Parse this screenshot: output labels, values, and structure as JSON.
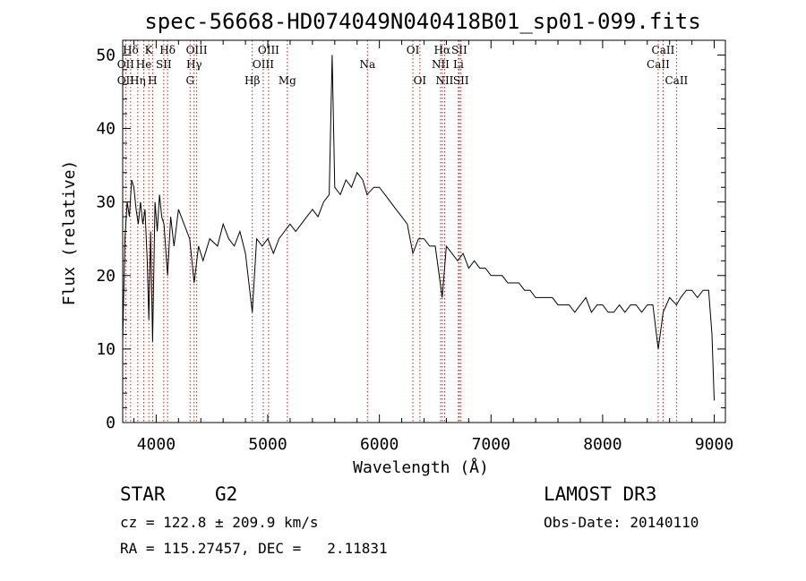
{
  "chart_data": {
    "type": "line",
    "title": "spec-56668-HD074049N040418B01_sp01-099.fits",
    "xlabel": "Wavelength (Å)",
    "ylabel": "Flux (relative)",
    "xlim": [
      3700,
      9100
    ],
    "ylim": [
      0,
      52
    ],
    "xticks": [
      4000,
      5000,
      6000,
      7000,
      8000,
      9000
    ],
    "yticks": [
      0,
      10,
      20,
      30,
      40,
      50
    ],
    "grid": false,
    "legend": "none",
    "line_color": "#000000",
    "marker_color": "#b22222",
    "spectrum": {
      "x": [
        3700,
        3720,
        3740,
        3760,
        3780,
        3800,
        3820,
        3840,
        3860,
        3880,
        3900,
        3920,
        3934,
        3950,
        3968,
        3990,
        4010,
        4030,
        4050,
        4070,
        4102,
        4130,
        4160,
        4200,
        4250,
        4300,
        4340,
        4380,
        4420,
        4480,
        4550,
        4600,
        4650,
        4700,
        4750,
        4800,
        4861,
        4900,
        4950,
        5000,
        5050,
        5100,
        5150,
        5200,
        5250,
        5300,
        5350,
        5400,
        5450,
        5500,
        5550,
        5577,
        5600,
        5650,
        5700,
        5750,
        5800,
        5850,
        5890,
        5950,
        6000,
        6050,
        6100,
        6150,
        6200,
        6250,
        6300,
        6350,
        6400,
        6450,
        6500,
        6563,
        6600,
        6650,
        6700,
        6750,
        6800,
        6850,
        6900,
        6950,
        7000,
        7050,
        7100,
        7150,
        7200,
        7250,
        7300,
        7350,
        7400,
        7450,
        7500,
        7550,
        7600,
        7650,
        7700,
        7750,
        7800,
        7850,
        7900,
        7950,
        8000,
        8050,
        8100,
        8150,
        8200,
        8250,
        8300,
        8350,
        8400,
        8450,
        8498,
        8542,
        8600,
        8662,
        8700,
        8750,
        8800,
        8850,
        8900,
        8950,
        8980,
        9000
      ],
      "y": [
        11,
        25,
        30,
        28,
        33,
        32,
        29,
        27,
        30,
        27,
        29,
        22,
        14,
        26,
        11,
        30,
        26,
        31,
        28,
        27,
        20,
        28,
        24,
        29,
        27,
        25,
        19,
        24,
        22,
        25,
        24,
        27,
        25,
        24,
        26,
        23,
        15,
        25,
        24,
        25,
        23,
        25,
        26,
        27,
        26,
        27,
        28,
        29,
        28,
        30,
        31,
        50,
        32,
        31,
        33,
        32,
        34,
        33,
        31,
        32,
        32,
        31,
        30,
        29,
        28,
        27,
        23,
        25,
        25,
        24,
        24,
        17,
        24,
        23,
        22,
        23,
        21,
        22,
        21,
        21,
        20,
        20,
        20,
        19,
        19,
        19,
        18,
        18,
        17,
        17,
        17,
        17,
        16,
        16,
        16,
        15,
        16,
        17,
        15,
        16,
        16,
        15,
        15,
        16,
        15,
        16,
        16,
        15,
        16,
        16,
        10,
        15,
        17,
        16,
        17,
        18,
        18,
        17,
        18,
        18,
        12,
        3
      ]
    },
    "line_markers": [
      {
        "label": "Hδ",
        "x": 3771,
        "row": 0
      },
      {
        "label": "OII",
        "x": 3727,
        "row": 1
      },
      {
        "label": "OII",
        "x": 3727,
        "row": 2
      },
      {
        "label": "Hη",
        "x": 3835,
        "row": 2
      },
      {
        "label": "He",
        "x": 3889,
        "row": 1
      },
      {
        "label": "K",
        "x": 3934,
        "row": 0
      },
      {
        "label": "SII",
        "x": 4068,
        "row": 1
      },
      {
        "label": "H",
        "x": 3968,
        "row": 2
      },
      {
        "label": "Hδ",
        "x": 4102,
        "row": 0
      },
      {
        "label": "OIII",
        "x": 4363,
        "row": 0
      },
      {
        "label": "Hγ",
        "x": 4340,
        "row": 1
      },
      {
        "label": "G",
        "x": 4304,
        "row": 2
      },
      {
        "label": "Hβ",
        "x": 4861,
        "row": 2
      },
      {
        "label": "OIII",
        "x": 5007,
        "row": 0
      },
      {
        "label": "OIII",
        "x": 4959,
        "row": 1
      },
      {
        "label": "Mg",
        "x": 5175,
        "row": 2
      },
      {
        "label": "Na",
        "x": 5893,
        "row": 1
      },
      {
        "label": "OI",
        "x": 6300,
        "row": 0
      },
      {
        "label": "OI",
        "x": 6363,
        "row": 2
      },
      {
        "label": "Hα",
        "x": 6563,
        "row": 0
      },
      {
        "label": "NII",
        "x": 6548,
        "row": 1
      },
      {
        "label": "NII",
        "x": 6584,
        "row": 2
      },
      {
        "label": "SII",
        "x": 6716,
        "row": 0
      },
      {
        "label": "Li",
        "x": 6708,
        "row": 1
      },
      {
        "label": "SII",
        "x": 6731,
        "row": 2
      },
      {
        "label": "CaII",
        "x": 8542,
        "row": 0
      },
      {
        "label": "CaII",
        "x": 8498,
        "row": 1
      },
      {
        "label": "CaII",
        "x": 8662,
        "row": 2
      }
    ]
  },
  "info": {
    "class_label": "STAR",
    "subclass_label": "G2",
    "cz_line": "cz = 122.8 ± 209.9 km/s",
    "radec_line": "RA = 115.27457, DEC =   2.11831",
    "survey_label": "LAMOST DR3",
    "obs_date_line": "Obs-Date: 20140110"
  }
}
